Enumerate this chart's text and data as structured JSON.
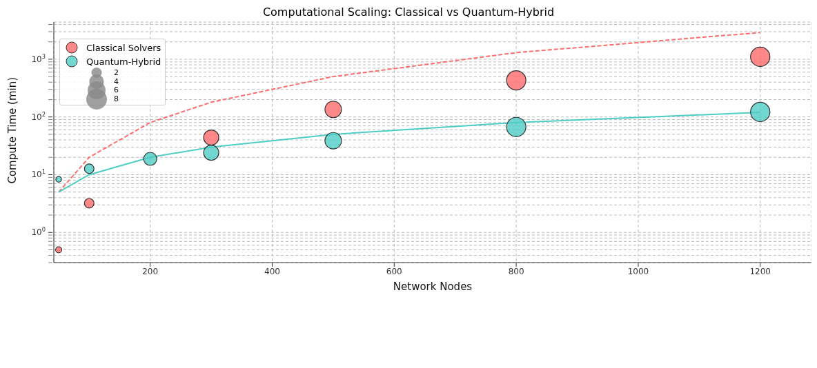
{
  "chart_data": {
    "type": "bubble",
    "title": "Computational Scaling: Classical vs Quantum-Hybrid",
    "xlabel": "Network Nodes",
    "ylabel": "Compute Time (min)",
    "series": [
      {
        "name": "Classical Solvers",
        "color": "#ff6b6b",
        "x": [
          50,
          100,
          300,
          500,
          800,
          1200
        ],
        "values": [
          0.5,
          3.2,
          44,
          135,
          430,
          1100
        ],
        "sizes": [
          0.7,
          1.7,
          4.3,
          5.1,
          7,
          7
        ]
      },
      {
        "name": "Quantum-Hybrid",
        "color": "#4ecdc4",
        "x": [
          50,
          100,
          200,
          300,
          500,
          800,
          1200
        ],
        "values": [
          8.3,
          12.7,
          18.8,
          24,
          38.7,
          67,
          122
        ],
        "sizes": [
          0.6,
          1.7,
          3.2,
          4.3,
          5.1,
          7,
          7
        ]
      },
      {
        "type": "line",
        "color": "#ff6b6b",
        "line_style": "dashed",
        "x": [
          50,
          100,
          200,
          300,
          500,
          800,
          1200
        ],
        "values": [
          5,
          20,
          80,
          180,
          500,
          1300,
          2900
        ]
      },
      {
        "type": "line",
        "color": "#4ecdc4",
        "line_style": "solid",
        "x": [
          50,
          100,
          200,
          300,
          500,
          800,
          1200
        ],
        "values": [
          5,
          10,
          20,
          30,
          50,
          80,
          120
        ]
      }
    ],
    "size_legend": [
      2,
      4,
      6,
      8
    ],
    "xlim": [
      42,
      1284
    ],
    "xticks": [
      200,
      400,
      600,
      800,
      1000,
      1200
    ],
    "ylim": [
      0.3,
      4400
    ],
    "yticks": [
      {
        "value": 0.3,
        "label": null
      },
      {
        "value": 0.4,
        "label": null
      },
      {
        "value": 0.5,
        "label": null
      },
      {
        "value": 0.6,
        "label": null
      },
      {
        "value": 0.7,
        "label": null
      },
      {
        "value": 0.8,
        "label": null
      },
      {
        "value": 0.9,
        "label": null
      },
      {
        "value": 1,
        "label": "10$^{0}$"
      },
      {
        "value": 2,
        "label": null
      },
      {
        "value": 3,
        "label": null
      },
      {
        "value": 4,
        "label": null
      },
      {
        "value": 5,
        "label": null
      },
      {
        "value": 6,
        "label": null
      },
      {
        "value": 7,
        "label": null
      },
      {
        "value": 8,
        "label": null
      },
      {
        "value": 9,
        "label": null
      },
      {
        "value": 10,
        "label": "10$^{1}$"
      },
      {
        "value": 20,
        "label": null
      },
      {
        "value": 30,
        "label": null
      },
      {
        "value": 40,
        "label": null
      },
      {
        "value": 50,
        "label": null
      },
      {
        "value": 60,
        "label": null
      },
      {
        "value": 70,
        "label": null
      },
      {
        "value": 80,
        "label": null
      },
      {
        "value": 90,
        "label": null
      },
      {
        "value": 100,
        "label": "10$^{2}$"
      },
      {
        "value": 200,
        "label": null
      },
      {
        "value": 300,
        "label": null
      },
      {
        "value": 400,
        "label": null
      },
      {
        "value": 500,
        "label": null
      },
      {
        "value": 600,
        "label": null
      },
      {
        "value": 700,
        "label": null
      },
      {
        "value": 800,
        "label": null
      },
      {
        "value": 900,
        "label": null
      },
      {
        "value": 1000,
        "label": "10$^{3}$"
      },
      {
        "value": 2000,
        "label": null
      },
      {
        "value": 3000,
        "label": null
      },
      {
        "value": 4000,
        "label": null
      }
    ],
    "log": true,
    "grid": true,
    "legend": "top left"
  }
}
